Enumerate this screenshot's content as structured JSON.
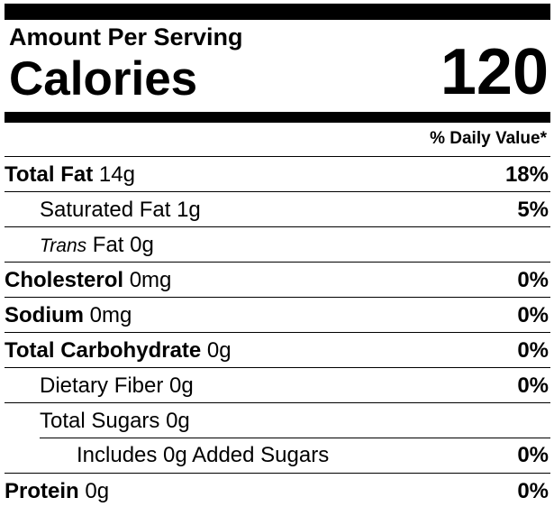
{
  "amount_per_serving": "Amount Per Serving",
  "calories_label": "Calories",
  "calories_value": "120",
  "daily_value_header": "% Daily Value*",
  "nutrients": [
    {
      "bold": "Total Fat",
      "plain": " 14g",
      "pct": "18%"
    },
    {
      "bold": "",
      "plain": "Saturated Fat 1g",
      "pct": "5%"
    },
    {
      "italic": "Trans",
      "plain": " Fat 0g",
      "pct": ""
    },
    {
      "bold": "Cholesterol",
      "plain": " 0mg",
      "pct": "0%"
    },
    {
      "bold": "Sodium",
      "plain": " 0mg",
      "pct": "0%"
    },
    {
      "bold": "Total Carbohydrate",
      "plain": " 0g",
      "pct": "0%"
    },
    {
      "bold": "",
      "plain": "Dietary Fiber 0g",
      "pct": "0%"
    },
    {
      "bold": "",
      "plain": "Total Sugars 0g",
      "pct": ""
    },
    {
      "bold": "",
      "plain": "Includes 0g Added Sugars",
      "pct": "0%"
    },
    {
      "bold": "Protein",
      "plain": " 0g",
      "pct": "0%"
    }
  ]
}
